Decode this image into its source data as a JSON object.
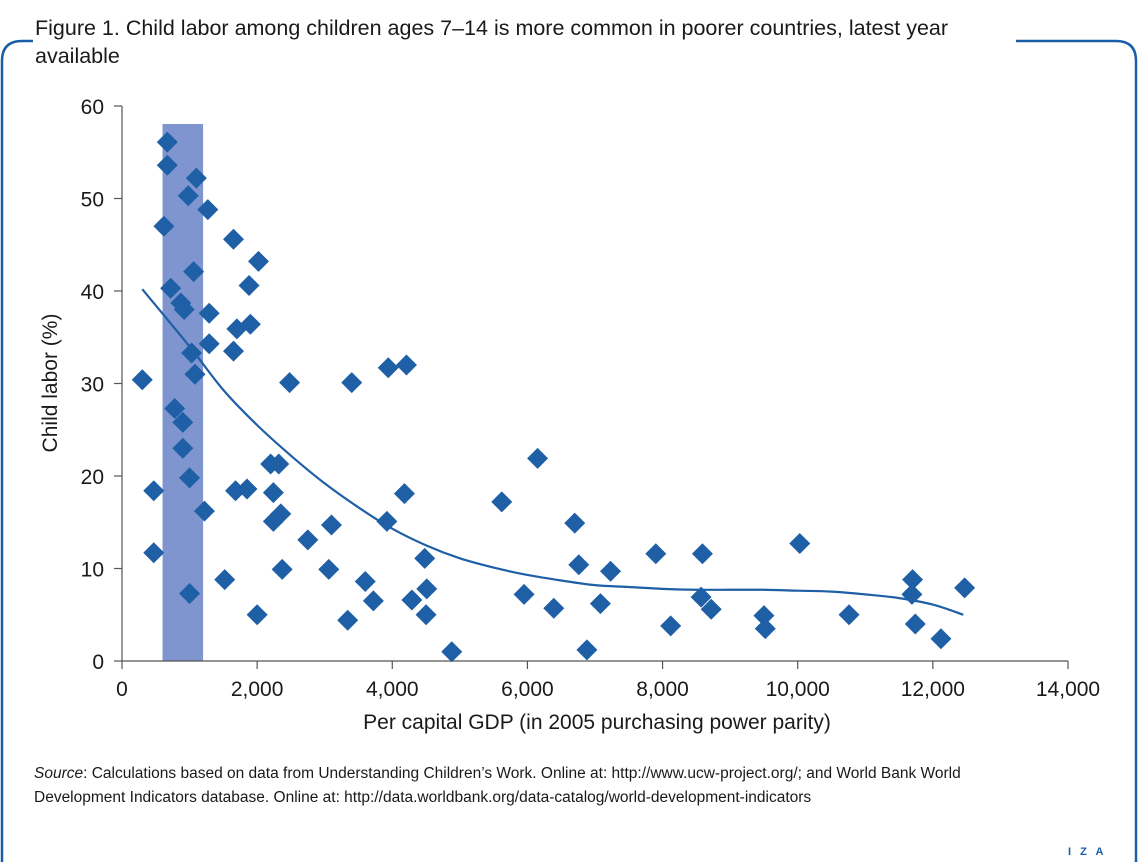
{
  "figure": {
    "title": "Figure 1. Child labor among children ages 7–14 is more common in poorer countries, latest year available",
    "source_label": "Source",
    "source_text": ": Calculations based on data from Understanding Children’s Work. Online at: http://www.ucw-project.org/; and World Bank World Development Indicators database. Online at: http://data.worldbank.org/data-catalog/world-development-indicators",
    "logo": "I Z A"
  },
  "colors": {
    "frame": "#1a5ea8",
    "points": "#1f5fa6",
    "trend": "#1f5fa6",
    "band": "#7f95cf",
    "axis": "#555555"
  },
  "chart_data": {
    "type": "scatter",
    "title": "",
    "xlabel": "Per capital GDP (in 2005 purchasing power parity)",
    "ylabel": "Child labor (%)",
    "xlim": [
      0,
      14000
    ],
    "ylim": [
      0,
      60
    ],
    "xticks": [
      0,
      2000,
      4000,
      6000,
      8000,
      10000,
      12000,
      14000
    ],
    "xtick_labels": [
      "0",
      "2,000",
      "4,000",
      "6,000",
      "8,000",
      "10,000",
      "12,000",
      "14,000"
    ],
    "yticks": [
      0,
      10,
      20,
      30,
      40,
      50,
      60
    ],
    "ytick_labels": [
      "0",
      "10",
      "20",
      "30",
      "40",
      "50",
      "60"
    ],
    "grid": false,
    "highlight_band": {
      "x_from": 600,
      "x_to": 1200
    },
    "series": [
      {
        "marker": "diamond",
        "points": [
          [
            300,
            30.4
          ],
          [
            470,
            18.4
          ],
          [
            470,
            11.7
          ],
          [
            620,
            47.0
          ],
          [
            670,
            56.1
          ],
          [
            670,
            53.6
          ],
          [
            720,
            40.3
          ],
          [
            780,
            27.3
          ],
          [
            870,
            38.7
          ],
          [
            900,
            25.8
          ],
          [
            900,
            23.0
          ],
          [
            920,
            38.0
          ],
          [
            980,
            50.3
          ],
          [
            1000,
            19.8
          ],
          [
            1000,
            7.3
          ],
          [
            1030,
            33.3
          ],
          [
            1060,
            42.1
          ],
          [
            1080,
            31.0
          ],
          [
            1100,
            52.2
          ],
          [
            1220,
            16.2
          ],
          [
            1270,
            48.8
          ],
          [
            1290,
            37.6
          ],
          [
            1290,
            34.3
          ],
          [
            1520,
            8.8
          ],
          [
            1650,
            45.6
          ],
          [
            1650,
            33.5
          ],
          [
            1680,
            18.4
          ],
          [
            1700,
            35.9
          ],
          [
            1850,
            18.6
          ],
          [
            1880,
            40.6
          ],
          [
            1900,
            36.4
          ],
          [
            2000,
            5.0
          ],
          [
            2020,
            43.2
          ],
          [
            2200,
            21.3
          ],
          [
            2240,
            18.2
          ],
          [
            2240,
            15.1
          ],
          [
            2320,
            21.3
          ],
          [
            2350,
            15.9
          ],
          [
            2370,
            9.9
          ],
          [
            2480,
            30.1
          ],
          [
            2750,
            13.1
          ],
          [
            3060,
            9.9
          ],
          [
            3100,
            14.7
          ],
          [
            3340,
            4.4
          ],
          [
            3400,
            30.1
          ],
          [
            3600,
            8.6
          ],
          [
            3720,
            6.5
          ],
          [
            3920,
            15.1
          ],
          [
            3940,
            31.7
          ],
          [
            4180,
            18.1
          ],
          [
            4210,
            32.0
          ],
          [
            4290,
            6.6
          ],
          [
            4480,
            11.1
          ],
          [
            4500,
            5.0
          ],
          [
            4510,
            7.8
          ],
          [
            4880,
            1.0
          ],
          [
            5620,
            17.2
          ],
          [
            5950,
            7.2
          ],
          [
            6150,
            21.9
          ],
          [
            6390,
            5.7
          ],
          [
            6700,
            14.9
          ],
          [
            6760,
            10.4
          ],
          [
            6880,
            1.2
          ],
          [
            7080,
            6.2
          ],
          [
            7230,
            9.7
          ],
          [
            7900,
            11.6
          ],
          [
            8120,
            3.8
          ],
          [
            8570,
            6.9
          ],
          [
            8590,
            11.6
          ],
          [
            8720,
            5.6
          ],
          [
            9500,
            4.9
          ],
          [
            9520,
            3.5
          ],
          [
            10030,
            12.7
          ],
          [
            10760,
            5.0
          ],
          [
            11690,
            7.2
          ],
          [
            11700,
            8.8
          ],
          [
            11740,
            4.0
          ],
          [
            12120,
            2.4
          ],
          [
            12470,
            7.9
          ]
        ]
      }
    ],
    "trendline": [
      [
        300,
        40.2
      ],
      [
        1000,
        34.0
      ],
      [
        1500,
        29.3
      ],
      [
        2000,
        25.5
      ],
      [
        2500,
        22.2
      ],
      [
        3000,
        19.2
      ],
      [
        3500,
        16.6
      ],
      [
        4000,
        14.3
      ],
      [
        4500,
        12.5
      ],
      [
        5000,
        11.1
      ],
      [
        5500,
        10.1
      ],
      [
        6000,
        9.3
      ],
      [
        6500,
        8.7
      ],
      [
        7000,
        8.2
      ],
      [
        7500,
        8.0
      ],
      [
        8000,
        7.8
      ],
      [
        8500,
        7.7
      ],
      [
        9000,
        7.7
      ],
      [
        9500,
        7.7
      ],
      [
        10000,
        7.6
      ],
      [
        10500,
        7.5
      ],
      [
        11000,
        7.2
      ],
      [
        11500,
        6.8
      ],
      [
        12000,
        6.1
      ],
      [
        12450,
        5.0
      ]
    ]
  }
}
